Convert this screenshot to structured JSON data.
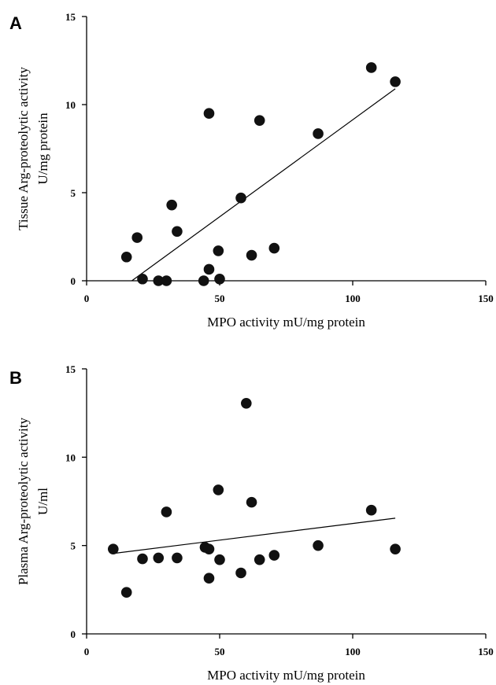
{
  "chart_data": [
    {
      "type": "scatter",
      "panel": "A",
      "xlabel": "MPO activity mU/mg protein",
      "ylabel": [
        "Tissue Arg-proteolytic activity",
        "U/mg protein"
      ],
      "xlim": [
        0,
        150
      ],
      "ylim": [
        0,
        15
      ],
      "xticks": [
        0,
        50,
        100,
        150
      ],
      "yticks": [
        0,
        5,
        10,
        15
      ],
      "grid": false,
      "points": [
        {
          "x": 15,
          "y": 1.35
        },
        {
          "x": 19,
          "y": 2.45
        },
        {
          "x": 21,
          "y": 0.1
        },
        {
          "x": 27,
          "y": 0.0
        },
        {
          "x": 30,
          "y": 0.0
        },
        {
          "x": 32,
          "y": 4.3
        },
        {
          "x": 34,
          "y": 2.8
        },
        {
          "x": 44,
          "y": 0.0
        },
        {
          "x": 46,
          "y": 9.5
        },
        {
          "x": 46,
          "y": 0.65
        },
        {
          "x": 49.5,
          "y": 1.7
        },
        {
          "x": 50,
          "y": 0.1
        },
        {
          "x": 58,
          "y": 4.7
        },
        {
          "x": 62,
          "y": 1.45
        },
        {
          "x": 65,
          "y": 9.1
        },
        {
          "x": 70.5,
          "y": 1.85
        },
        {
          "x": 87,
          "y": 8.35
        },
        {
          "x": 107,
          "y": 12.1
        },
        {
          "x": 116,
          "y": 11.3
        }
      ],
      "fit_line": {
        "x": [
          17,
          116
        ],
        "y": [
          0,
          10.9
        ]
      }
    },
    {
      "type": "scatter",
      "panel": "B",
      "xlabel": "MPO activity mU/mg protein",
      "ylabel": [
        "Plasma Arg-proteolytic activity",
        "U/ml"
      ],
      "xlim": [
        0,
        150
      ],
      "ylim": [
        0,
        15
      ],
      "xticks": [
        0,
        50,
        100,
        150
      ],
      "yticks": [
        0,
        5,
        10,
        15
      ],
      "grid": false,
      "points": [
        {
          "x": 10,
          "y": 4.8
        },
        {
          "x": 15,
          "y": 2.35
        },
        {
          "x": 21,
          "y": 4.25
        },
        {
          "x": 27,
          "y": 4.3
        },
        {
          "x": 30,
          "y": 6.9
        },
        {
          "x": 34,
          "y": 4.3
        },
        {
          "x": 44.5,
          "y": 4.9
        },
        {
          "x": 46,
          "y": 4.8
        },
        {
          "x": 46,
          "y": 3.15
        },
        {
          "x": 49.5,
          "y": 8.15
        },
        {
          "x": 50,
          "y": 4.2
        },
        {
          "x": 58,
          "y": 3.45
        },
        {
          "x": 60,
          "y": 13.05
        },
        {
          "x": 62,
          "y": 7.45
        },
        {
          "x": 65,
          "y": 4.2
        },
        {
          "x": 70.5,
          "y": 4.45
        },
        {
          "x": 87,
          "y": 5.0
        },
        {
          "x": 107,
          "y": 7.0
        },
        {
          "x": 116,
          "y": 4.8
        }
      ],
      "fit_line": {
        "x": [
          10,
          116
        ],
        "y": [
          4.55,
          6.55
        ]
      }
    }
  ]
}
